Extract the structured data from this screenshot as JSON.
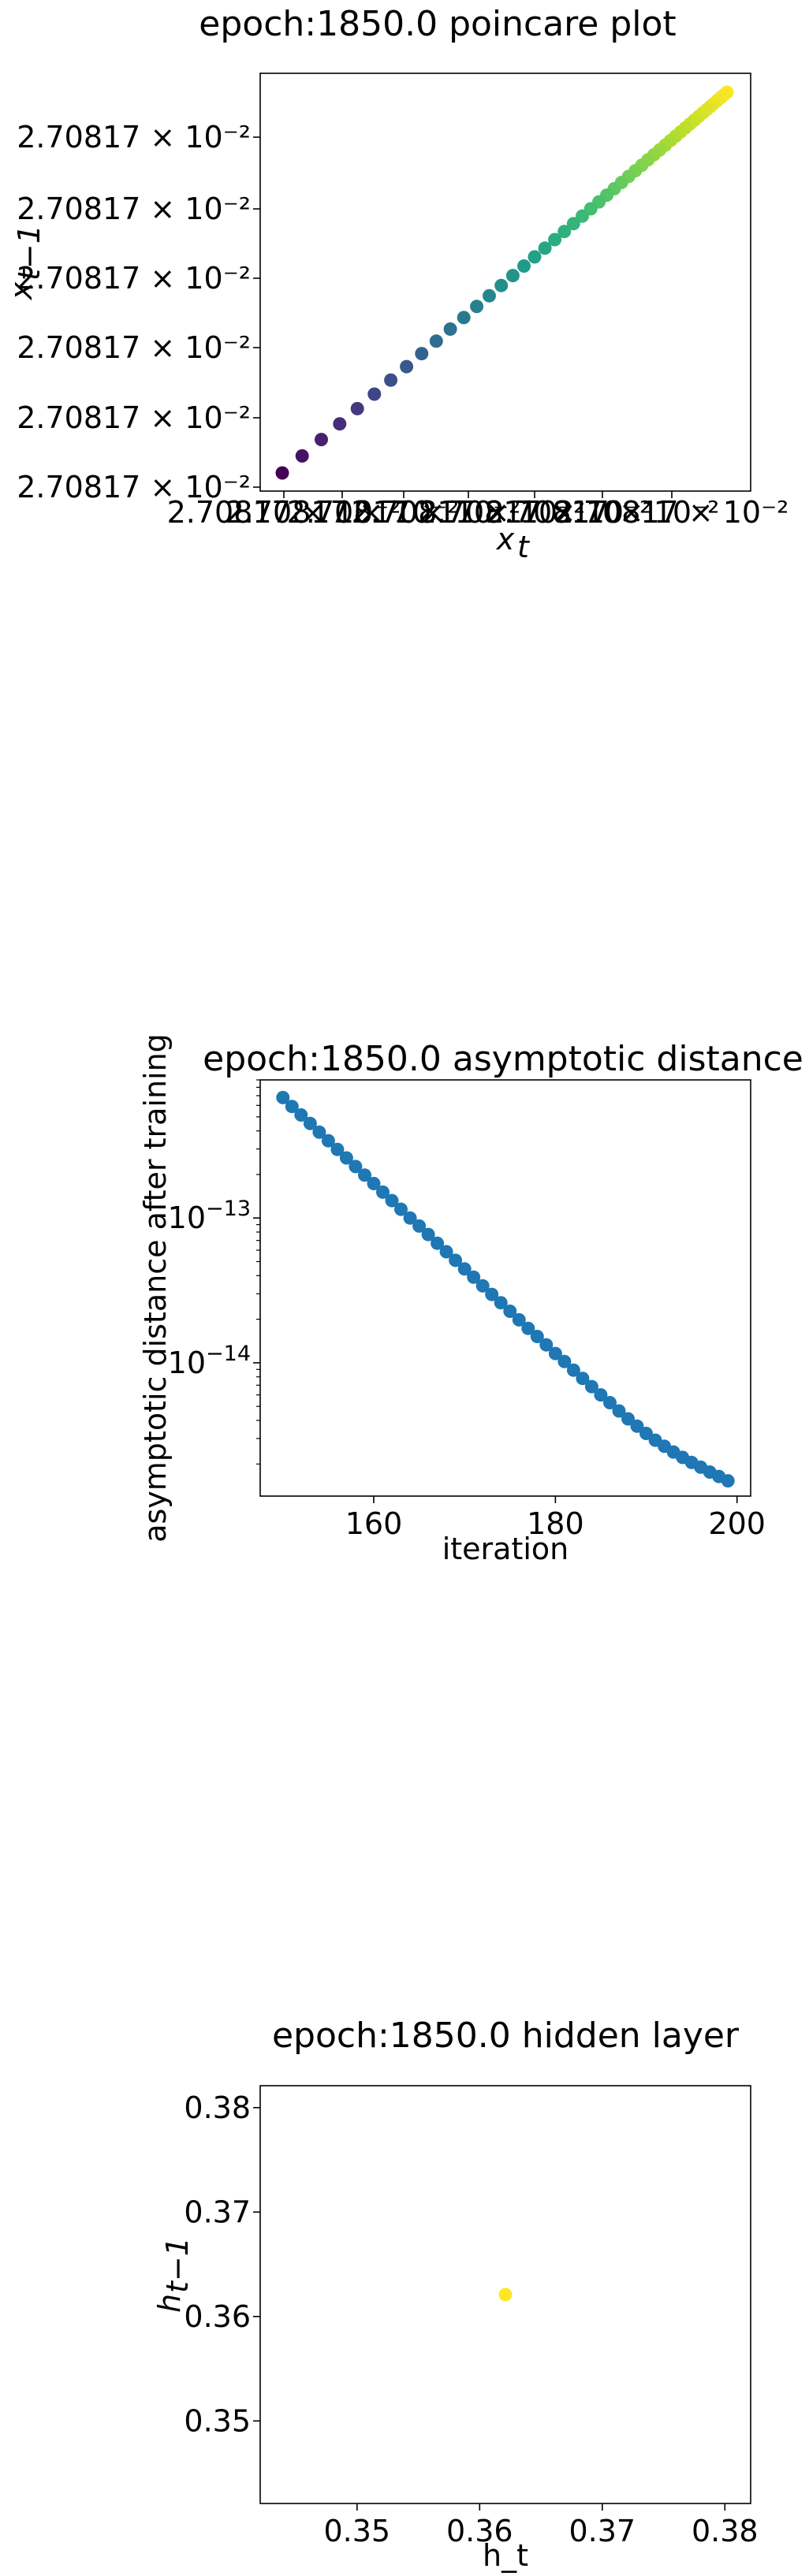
{
  "chart_data": [
    {
      "type": "scatter",
      "title": "epoch:1850.0 poincare plot",
      "xlabel": "x_t",
      "ylabel": "x_{t−1}",
      "x_tick_labels": [
        "2.70817 × 10⁻²",
        "2.70817 × 10⁻²",
        "2.70817 × 10⁻²",
        "2.70817 × 10⁻²",
        "2.70817 × 10⁻²",
        "2.70817 × 10⁻²",
        "2.70817 × 10⁻²"
      ],
      "y_tick_labels": [
        "2.70817 × 10⁻²",
        "2.70817 × 10⁻²",
        "2.70817 × 10⁻²",
        "2.70817 × 10⁻²",
        "2.70817 × 10⁻²",
        "2.70817 × 10⁻²"
      ],
      "colormap": "viridis",
      "point_count": 50,
      "decay": 0.962,
      "grid": false
    },
    {
      "type": "scatter",
      "title": "epoch:1850.0 asymptotic distance",
      "xlabel": "iteration",
      "ylabel": "asymptotic distance after training",
      "x": [
        150,
        151,
        152,
        153,
        154,
        155,
        156,
        157,
        158,
        159,
        160,
        161,
        162,
        163,
        164,
        165,
        166,
        167,
        168,
        169,
        170,
        171,
        172,
        173,
        174,
        175,
        176,
        177,
        178,
        179,
        180,
        181,
        182,
        183,
        184,
        185,
        186,
        187,
        188,
        189,
        190,
        191,
        192,
        193,
        194,
        195,
        196,
        197,
        198,
        199
      ],
      "y": [
        6.8e-13,
        5.9e-13,
        5.15e-13,
        4.5e-13,
        3.92e-13,
        3.42e-13,
        2.98e-13,
        2.6e-13,
        2.27e-13,
        1.98e-13,
        1.73e-13,
        1.51e-13,
        1.32e-13,
        1.15e-13,
        1e-13,
        8.8e-14,
        7.7e-14,
        6.7e-14,
        5.85e-14,
        5.1e-14,
        4.45e-14,
        3.9e-14,
        3.4e-14,
        2.97e-14,
        2.6e-14,
        2.27e-14,
        1.98e-14,
        1.73e-14,
        1.52e-14,
        1.33e-14,
        1.16e-14,
        1.02e-14,
        8.9e-15,
        7.8e-15,
        6.85e-15,
        6e-15,
        5.3e-15,
        4.65e-15,
        4.1e-15,
        3.65e-15,
        3.25e-15,
        2.92e-15,
        2.65e-15,
        2.42e-15,
        2.22e-15,
        2.05e-15,
        1.9e-15,
        1.76e-15,
        1.64e-15,
        1.53e-15
      ],
      "x_ticks": [
        160,
        180,
        200
      ],
      "xlim": [
        147.5,
        201.5
      ],
      "y_scale": "log",
      "ylim": [
        1.2e-15,
        9e-13
      ],
      "y_tick_labels": [
        {
          "value": 1e-13,
          "mantissa": "10",
          "exponent": "−13"
        },
        {
          "value": 1e-14,
          "mantissa": "10",
          "exponent": "−14"
        }
      ],
      "color": "#1f77b4",
      "grid": false
    },
    {
      "type": "scatter",
      "title": "epoch:1850.0 hidden layer",
      "xlabel": "h_t",
      "ylabel": "h_{t−1}",
      "x": [
        0.3621
      ],
      "y": [
        0.3621
      ],
      "xlim": [
        0.3421,
        0.3821
      ],
      "ylim": [
        0.3421,
        0.3821
      ],
      "x_ticks": [
        "0.35",
        "0.36",
        "0.37",
        "0.38"
      ],
      "y_ticks": [
        "0.35",
        "0.36",
        "0.37",
        "0.38"
      ],
      "color": "#fde725",
      "grid": false
    }
  ]
}
